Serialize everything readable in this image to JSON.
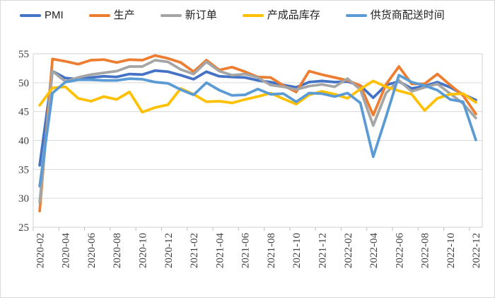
{
  "colors": {
    "background": "#ffffff",
    "frame_border": "#d9d9d9",
    "gridline": "#d9d9d9",
    "axis_line": "#d0d0d0",
    "tick_mark": "#bfbfbf",
    "axis_text": "#404040",
    "legend_text": "#1f1f1f"
  },
  "chart_data": {
    "type": "line",
    "title": "",
    "xlabel": "",
    "ylabel": "",
    "legend_position": "top",
    "grid": true,
    "ylim": [
      25,
      55
    ],
    "y_ticks": [
      25,
      30,
      35,
      40,
      45,
      50,
      55
    ],
    "x_tick_interval": 2,
    "x": [
      "2020-02",
      "2020-03",
      "2020-04",
      "2020-05",
      "2020-06",
      "2020-07",
      "2020-08",
      "2020-09",
      "2020-10",
      "2020-11",
      "2020-12",
      "2021-01",
      "2021-02",
      "2021-03",
      "2021-04",
      "2021-05",
      "2021-06",
      "2021-07",
      "2021-08",
      "2021-09",
      "2021-10",
      "2021-11",
      "2021-12",
      "2022-01",
      "2022-02",
      "2022-03",
      "2022-04",
      "2022-05",
      "2022-06",
      "2022-07",
      "2022-08",
      "2022-09",
      "2022-10",
      "2022-11",
      "2022-12"
    ],
    "x_tick_labels": [
      "2020-02",
      "2020-04",
      "2020-06",
      "2020-08",
      "2020-10",
      "2020-12",
      "2021-02",
      "2021-04",
      "2021-06",
      "2021-08",
      "2021-10",
      "2021-12",
      "2022-02",
      "2022-04",
      "2022-06",
      "2022-08",
      "2022-10",
      "2022-12"
    ],
    "series": [
      {
        "id": "pmi",
        "name": "PMI",
        "color": "#4472C4",
        "values": [
          35.7,
          52.0,
          50.8,
          50.6,
          50.9,
          51.1,
          51.0,
          51.5,
          51.4,
          52.1,
          51.9,
          51.3,
          50.6,
          51.9,
          51.1,
          51.0,
          50.9,
          50.4,
          50.1,
          49.6,
          49.2,
          50.1,
          50.3,
          50.1,
          50.2,
          49.5,
          47.4,
          49.6,
          50.2,
          49.0,
          49.4,
          50.1,
          49.2,
          48.0,
          47.0
        ]
      },
      {
        "id": "production",
        "name": "生产",
        "color": "#ED7D31",
        "values": [
          27.8,
          54.1,
          53.7,
          53.2,
          53.9,
          54.0,
          53.5,
          54.0,
          53.9,
          54.7,
          54.2,
          53.5,
          51.9,
          53.9,
          52.2,
          52.7,
          51.9,
          51.0,
          50.9,
          49.5,
          48.4,
          52.0,
          51.4,
          50.9,
          50.4,
          49.5,
          44.4,
          49.7,
          52.8,
          49.8,
          49.8,
          51.5,
          49.6,
          47.8,
          44.6
        ]
      },
      {
        "id": "new-orders",
        "name": "新订单",
        "color": "#A5A5A5",
        "values": [
          29.3,
          52.0,
          50.2,
          50.9,
          51.4,
          51.7,
          52.0,
          52.8,
          52.8,
          53.9,
          53.6,
          52.3,
          51.5,
          53.6,
          52.0,
          51.3,
          51.5,
          50.9,
          49.6,
          49.3,
          48.8,
          49.4,
          49.7,
          49.3,
          50.7,
          48.8,
          42.6,
          48.2,
          50.4,
          48.5,
          49.2,
          49.8,
          48.1,
          46.4,
          43.9
        ]
      },
      {
        "id": "finished-goods-inventory",
        "name": "产成品库存",
        "color": "#FFC000",
        "values": [
          46.1,
          49.1,
          49.3,
          47.3,
          46.8,
          47.6,
          47.1,
          48.4,
          44.9,
          45.7,
          46.2,
          49.0,
          48.0,
          46.7,
          46.8,
          46.5,
          47.1,
          47.6,
          48.2,
          47.2,
          46.3,
          47.9,
          48.5,
          48.0,
          47.3,
          48.9,
          50.3,
          49.3,
          48.6,
          48.0,
          45.2,
          47.3,
          48.0,
          48.1,
          46.6
        ]
      },
      {
        "id": "supplier-delivery-time",
        "name": "供货商配送时间",
        "color": "#5B9BD5",
        "values": [
          32.1,
          48.2,
          50.1,
          50.5,
          50.5,
          50.4,
          50.4,
          50.7,
          50.6,
          50.1,
          49.9,
          48.8,
          47.9,
          50.0,
          48.7,
          47.8,
          47.9,
          48.9,
          48.0,
          48.1,
          46.7,
          48.2,
          48.1,
          47.6,
          48.2,
          46.5,
          37.2,
          44.1,
          51.3,
          50.1,
          49.5,
          48.7,
          47.1,
          46.7,
          40.1
        ]
      }
    ]
  }
}
